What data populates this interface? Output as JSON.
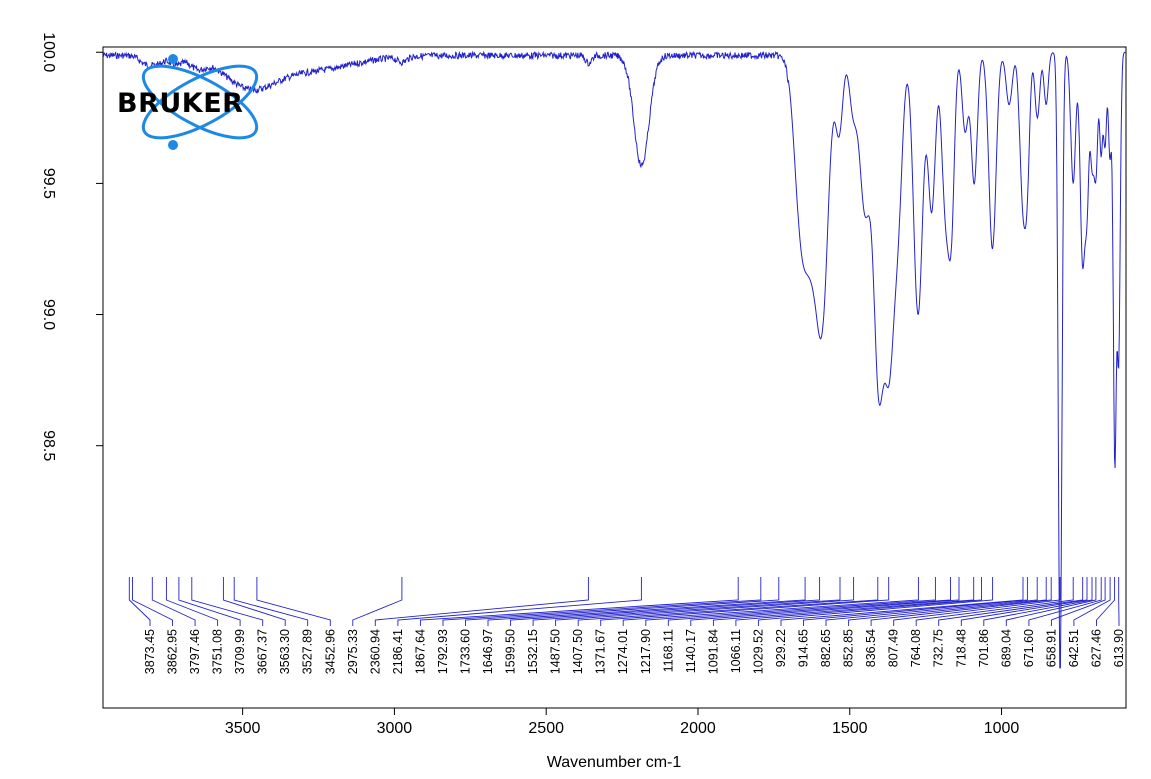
{
  "chart_data": {
    "type": "line",
    "xlabel": "Wavenumber cm-1",
    "ylabel": "",
    "x_reversed": true,
    "xlim": [
      3960,
      590
    ],
    "ylim": [
      97.5,
      100.02
    ],
    "x_ticks": [
      "3500",
      "3000",
      "2500",
      "2000",
      "1500",
      "1000"
    ],
    "y_ticks": [
      "100.0",
      "99.5",
      "99.0",
      "98.5"
    ],
    "line_color": "#2222cc",
    "baseline": 100.0,
    "absorption_bands": [
      {
        "center": 3820,
        "depth": 0.03,
        "width": 20
      },
      {
        "center": 3780,
        "depth": 0.03,
        "width": 20
      },
      {
        "center": 3720,
        "depth": 0.035,
        "width": 20
      },
      {
        "center": 3650,
        "depth": 0.04,
        "width": 25
      },
      {
        "center": 3480,
        "depth": 0.1,
        "width": 80
      },
      {
        "center": 3300,
        "depth": 0.06,
        "width": 150
      },
      {
        "center": 2975,
        "depth": 0.02,
        "width": 15
      },
      {
        "center": 2360,
        "depth": 0.03,
        "width": 10
      },
      {
        "center": 2186,
        "depth": 0.42,
        "width": 25
      },
      {
        "center": 1660,
        "depth": 0.65,
        "width": 22
      },
      {
        "center": 1625,
        "depth": 0.5,
        "width": 20
      },
      {
        "center": 1590,
        "depth": 0.95,
        "width": 20
      },
      {
        "center": 1535,
        "depth": 0.3,
        "width": 12
      },
      {
        "center": 1490,
        "depth": 0.2,
        "width": 12
      },
      {
        "center": 1450,
        "depth": 0.6,
        "width": 18
      },
      {
        "center": 1405,
        "depth": 1.2,
        "width": 16
      },
      {
        "center": 1370,
        "depth": 1.1,
        "width": 16
      },
      {
        "center": 1340,
        "depth": 0.55,
        "width": 14
      },
      {
        "center": 1275,
        "depth": 1.0,
        "width": 15
      },
      {
        "center": 1230,
        "depth": 0.6,
        "width": 12
      },
      {
        "center": 1185,
        "depth": 0.58,
        "width": 12
      },
      {
        "center": 1165,
        "depth": 0.6,
        "width": 10
      },
      {
        "center": 1120,
        "depth": 0.3,
        "width": 10
      },
      {
        "center": 1090,
        "depth": 0.5,
        "width": 10
      },
      {
        "center": 1030,
        "depth": 0.75,
        "width": 12
      },
      {
        "center": 975,
        "depth": 0.2,
        "width": 10
      },
      {
        "center": 930,
        "depth": 0.55,
        "width": 10
      },
      {
        "center": 915,
        "depth": 0.4,
        "width": 8
      },
      {
        "center": 882,
        "depth": 0.25,
        "width": 8
      },
      {
        "center": 853,
        "depth": 0.2,
        "width": 7
      },
      {
        "center": 807,
        "depth": 2.38,
        "width": 6
      },
      {
        "center": 764,
        "depth": 0.5,
        "width": 8
      },
      {
        "center": 733,
        "depth": 0.8,
        "width": 8
      },
      {
        "center": 718,
        "depth": 0.5,
        "width": 6
      },
      {
        "center": 702,
        "depth": 0.4,
        "width": 6
      },
      {
        "center": 689,
        "depth": 0.45,
        "width": 6
      },
      {
        "center": 672,
        "depth": 0.38,
        "width": 5
      },
      {
        "center": 659,
        "depth": 0.35,
        "width": 5
      },
      {
        "center": 643,
        "depth": 0.4,
        "width": 5
      },
      {
        "center": 627,
        "depth": 1.55,
        "width": 5
      },
      {
        "center": 614,
        "depth": 1.15,
        "width": 5
      }
    ],
    "peak_labels": [
      "3873.45",
      "3862.95",
      "3797.46",
      "3751.08",
      "3709.99",
      "3667.37",
      "3563.30",
      "3527.89",
      "3452.96",
      "2975.33",
      "2360.94",
      "2186.41",
      "1867.64",
      "1792.93",
      "1733.60",
      "1646.97",
      "1599.50",
      "1532.15",
      "1487.50",
      "1407.50",
      "1371.67",
      "1274.01",
      "1217.90",
      "1168.11",
      "1140.17",
      "1091.84",
      "1066.11",
      "1029.52",
      "929.22",
      "914.65",
      "882.65",
      "852.85",
      "836.54",
      "807.49",
      "764.08",
      "732.75",
      "718.48",
      "701.86",
      "689.04",
      "671.60",
      "658.91",
      "642.51",
      "627.46",
      "613.90"
    ]
  },
  "logo": {
    "text": "BRUKER",
    "color": "#1e88e5"
  }
}
